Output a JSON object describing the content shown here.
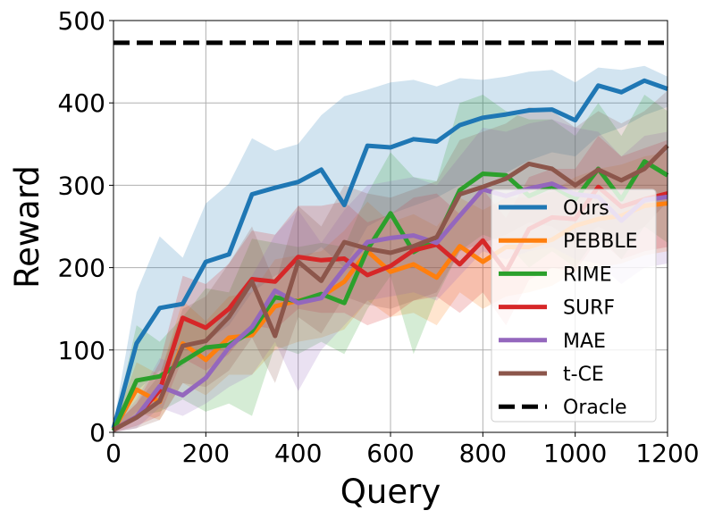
{
  "chart_data": {
    "type": "line",
    "title": "",
    "xlabel": "Query",
    "ylabel": "Reward",
    "xlim": [
      0,
      1200
    ],
    "ylim": [
      0,
      500
    ],
    "xticks": [
      0,
      200,
      400,
      600,
      800,
      1000,
      1200
    ],
    "yticks": [
      0,
      100,
      200,
      300,
      400,
      500
    ],
    "grid": true,
    "legend_position": "lower-right",
    "x": [
      0,
      50,
      100,
      150,
      200,
      250,
      300,
      350,
      400,
      450,
      500,
      550,
      600,
      650,
      700,
      750,
      800,
      850,
      900,
      950,
      1000,
      1050,
      1100,
      1150,
      1200
    ],
    "series": [
      {
        "name": "Ours",
        "color": "#1f77b4",
        "style": "solid",
        "values": [
          5,
          108,
          151,
          156,
          207,
          216,
          289,
          297,
          304,
          319,
          276,
          348,
          346,
          356,
          353,
          373,
          382,
          386,
          391,
          392,
          379,
          421,
          413,
          427,
          417
        ],
        "lower": [
          0,
          50,
          75,
          80,
          110,
          130,
          170,
          190,
          205,
          225,
          200,
          250,
          265,
          275,
          285,
          300,
          310,
          315,
          330,
          340,
          335,
          360,
          370,
          385,
          395
        ],
        "upper": [
          10,
          170,
          238,
          212,
          278,
          302,
          357,
          342,
          350,
          385,
          408,
          416,
          425,
          428,
          420,
          430,
          428,
          432,
          438,
          440,
          425,
          443,
          440,
          445,
          432
        ]
      },
      {
        "name": "PEBBLE",
        "color": "#ff7f0e",
        "style": "solid",
        "values": [
          3,
          52,
          37,
          108,
          88,
          115,
          118,
          153,
          160,
          165,
          183,
          220,
          195,
          204,
          188,
          226,
          207,
          225,
          225,
          234,
          251,
          259,
          263,
          275,
          278
        ],
        "lower": [
          0,
          25,
          15,
          60,
          45,
          70,
          70,
          100,
          110,
          115,
          125,
          160,
          140,
          145,
          130,
          170,
          150,
          165,
          170,
          178,
          195,
          200,
          205,
          215,
          220
        ],
        "upper": [
          8,
          85,
          70,
          160,
          135,
          165,
          170,
          210,
          215,
          220,
          245,
          280,
          255,
          265,
          250,
          285,
          270,
          285,
          285,
          292,
          310,
          320,
          325,
          335,
          340
        ]
      },
      {
        "name": "RIME",
        "color": "#2ca02c",
        "style": "solid",
        "values": [
          2,
          63,
          68,
          86,
          103,
          106,
          123,
          164,
          159,
          168,
          157,
          222,
          266,
          219,
          235,
          294,
          314,
          312,
          287,
          299,
          283,
          320,
          283,
          329,
          312
        ],
        "lower": [
          0,
          20,
          25,
          40,
          25,
          35,
          20,
          105,
          95,
          110,
          95,
          150,
          190,
          95,
          165,
          220,
          240,
          230,
          200,
          220,
          200,
          240,
          210,
          250,
          230
        ],
        "upper": [
          6,
          130,
          110,
          140,
          175,
          170,
          235,
          230,
          225,
          230,
          225,
          290,
          340,
          310,
          305,
          400,
          410,
          390,
          380,
          380,
          360,
          400,
          360,
          410,
          390
        ]
      },
      {
        "name": "SURF",
        "color": "#d62728",
        "style": "solid",
        "values": [
          3,
          19,
          51,
          139,
          127,
          150,
          186,
          183,
          213,
          209,
          211,
          191,
          202,
          221,
          228,
          204,
          233,
          195,
          247,
          261,
          259,
          298,
          274,
          283,
          290
        ],
        "lower": [
          0,
          8,
          20,
          90,
          75,
          95,
          130,
          125,
          150,
          145,
          145,
          130,
          140,
          160,
          165,
          145,
          170,
          130,
          185,
          200,
          195,
          235,
          210,
          220,
          225
        ],
        "upper": [
          8,
          35,
          85,
          190,
          180,
          205,
          245,
          240,
          275,
          275,
          280,
          255,
          265,
          285,
          290,
          265,
          295,
          260,
          310,
          320,
          320,
          360,
          335,
          345,
          355
        ]
      },
      {
        "name": "MAE",
        "color": "#9467bd",
        "style": "solid",
        "values": [
          3,
          19,
          56,
          45,
          66,
          103,
          128,
          172,
          157,
          163,
          199,
          231,
          236,
          239,
          230,
          263,
          295,
          287,
          296,
          302,
          289,
          286,
          257,
          282,
          286
        ],
        "lower": [
          0,
          5,
          30,
          20,
          35,
          55,
          70,
          110,
          50,
          100,
          130,
          160,
          165,
          170,
          160,
          190,
          220,
          210,
          220,
          225,
          210,
          205,
          180,
          200,
          205
        ],
        "upper": [
          8,
          40,
          90,
          80,
          110,
          155,
          190,
          240,
          270,
          230,
          270,
          300,
          305,
          310,
          300,
          335,
          370,
          365,
          375,
          380,
          370,
          365,
          335,
          360,
          365
        ]
      },
      {
        "name": "t-CE",
        "color": "#8c564b",
        "style": "solid",
        "values": [
          3,
          18,
          38,
          105,
          111,
          140,
          183,
          117,
          207,
          184,
          231,
          223,
          218,
          226,
          237,
          289,
          298,
          308,
          326,
          320,
          300,
          319,
          306,
          320,
          348
        ],
        "lower": [
          0,
          5,
          15,
          60,
          55,
          75,
          115,
          60,
          140,
          120,
          165,
          155,
          150,
          160,
          170,
          220,
          230,
          240,
          255,
          250,
          230,
          250,
          235,
          250,
          280
        ],
        "upper": [
          8,
          35,
          70,
          150,
          165,
          205,
          250,
          180,
          275,
          250,
          300,
          290,
          285,
          295,
          305,
          355,
          365,
          375,
          395,
          390,
          370,
          390,
          375,
          390,
          415
        ]
      },
      {
        "name": "Oracle",
        "color": "#000000",
        "style": "dashed",
        "values": [
          473,
          473,
          473,
          473,
          473,
          473,
          473,
          473,
          473,
          473,
          473,
          473,
          473,
          473,
          473,
          473,
          473,
          473,
          473,
          473,
          473,
          473,
          473,
          473,
          473
        ]
      }
    ]
  }
}
